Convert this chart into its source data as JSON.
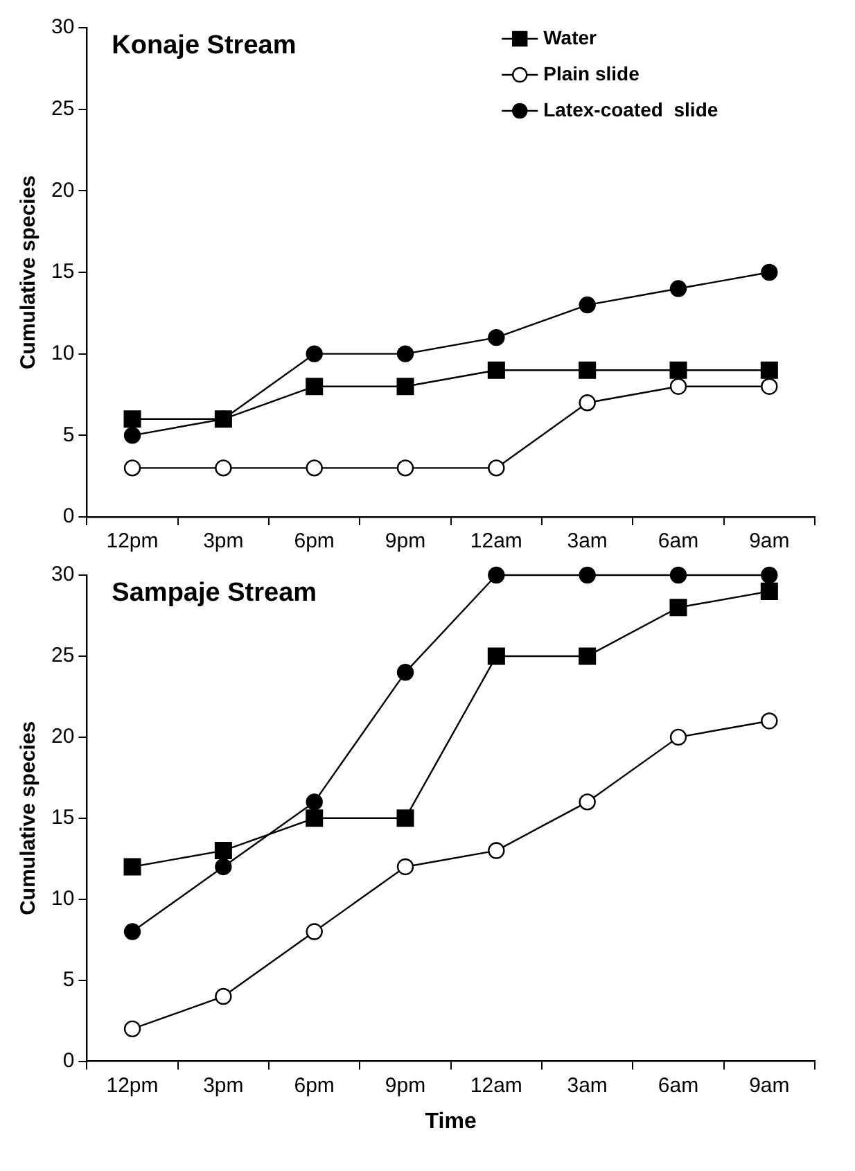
{
  "chart_data": [
    {
      "type": "line",
      "title": "Konaje Stream",
      "ylabel": "Cumulative species",
      "categories": [
        "12pm",
        "3pm",
        "6pm",
        "9pm",
        "12am",
        "3am",
        "6am",
        "9am"
      ],
      "ylim": [
        0,
        30
      ],
      "yticks": [
        0,
        5,
        10,
        15,
        20,
        25,
        30
      ],
      "grid": false,
      "legend": "top right",
      "series": [
        {
          "name": "Water",
          "color": "#000000",
          "marker": "square",
          "values": [
            6,
            6,
            8,
            8,
            9,
            9,
            9,
            9
          ]
        },
        {
          "name": "Plain slide",
          "color": "#000000",
          "marker": "circle",
          "colors": [
            "#ffffff",
            "#ffffff",
            "#ffffff",
            "#ffffff",
            "#ffffff",
            "#ffffff",
            "#ffffff",
            "#ffffff"
          ],
          "values": [
            3,
            3,
            3,
            3,
            3,
            7,
            8,
            8
          ]
        },
        {
          "name": "Latex-coated  slide",
          "color": "#000000",
          "marker": "circle",
          "values": [
            5,
            6,
            10,
            10,
            11,
            13,
            14,
            15
          ]
        }
      ]
    },
    {
      "type": "line",
      "title": "Sampaje Stream",
      "xlabel": "Time",
      "ylabel": "Cumulative species",
      "categories": [
        "12pm",
        "3pm",
        "6pm",
        "9pm",
        "12am",
        "3am",
        "6am",
        "9am"
      ],
      "ylim": [
        0,
        30
      ],
      "yticks": [
        0,
        5,
        10,
        15,
        20,
        25,
        30
      ],
      "grid": false,
      "legend": false,
      "series": [
        {
          "color": "#000000",
          "marker": "square",
          "values": [
            12,
            13,
            15,
            15,
            25,
            25,
            28,
            29
          ]
        },
        {
          "color": "#000000",
          "marker": "circle",
          "colors": [
            "#ffffff",
            "#ffffff",
            "#ffffff",
            "#ffffff",
            "#ffffff",
            "#ffffff",
            "#ffffff",
            "#ffffff"
          ],
          "values": [
            2,
            4,
            8,
            12,
            13,
            16,
            20,
            21
          ]
        },
        {
          "color": "#000000",
          "marker": "circle",
          "values": [
            8,
            12,
            16,
            24,
            30,
            30,
            30,
            30
          ]
        }
      ]
    }
  ]
}
